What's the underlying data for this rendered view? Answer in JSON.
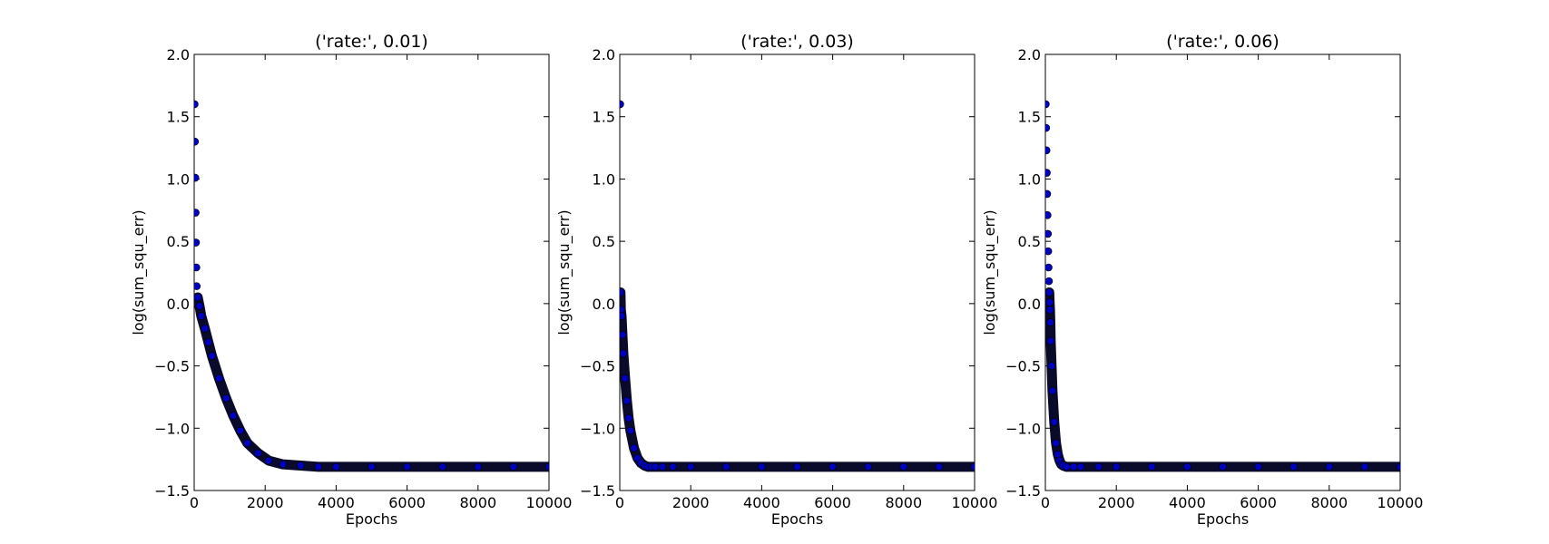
{
  "chart_data": [
    {
      "type": "scatter",
      "title": "('rate:', 0.01)",
      "xlabel": "Epochs",
      "ylabel": "log(sum_squ_err)",
      "xlim": [
        0,
        10000
      ],
      "ylim": [
        -1.5,
        2.0
      ],
      "xticks": [
        "0",
        "2000",
        "4000",
        "6000",
        "8000",
        "10000"
      ],
      "yticks": [
        "−1.5",
        "−1.0",
        "−0.5",
        "0.0",
        "0.5",
        "1.0",
        "1.5",
        "2.0"
      ],
      "grid": false,
      "marker_color": "#0000bf",
      "edge_color": "#000000",
      "series": [
        {
          "x": [
            10,
            20,
            30,
            40,
            50,
            60,
            70,
            100,
            150,
            200,
            300,
            400,
            500,
            700,
            900,
            1100,
            1300,
            1500,
            1800,
            2100,
            2500,
            3000,
            3500,
            4000,
            5000,
            6000,
            7000,
            8000,
            9000,
            10000
          ],
          "y": [
            1.6,
            1.3,
            1.01,
            0.73,
            0.49,
            0.29,
            0.14,
            0.05,
            -0.02,
            -0.1,
            -0.2,
            -0.31,
            -0.42,
            -0.6,
            -0.76,
            -0.9,
            -1.02,
            -1.12,
            -1.2,
            -1.26,
            -1.29,
            -1.3,
            -1.31,
            -1.31,
            -1.31,
            -1.31,
            -1.31,
            -1.31,
            -1.31,
            -1.31
          ]
        }
      ]
    },
    {
      "type": "scatter",
      "title": "('rate:', 0.03)",
      "xlabel": "Epochs",
      "ylabel": "log(sum_squ_err)",
      "xlim": [
        0,
        10000
      ],
      "ylim": [
        -1.5,
        2.0
      ],
      "xticks": [
        "0",
        "2000",
        "4000",
        "6000",
        "8000",
        "10000"
      ],
      "yticks": [
        "−1.5",
        "−1.0",
        "−0.5",
        "0.0",
        "0.5",
        "1.0",
        "1.5",
        "2.0"
      ],
      "grid": false,
      "marker_color": "#0000bf",
      "edge_color": "#000000",
      "series": [
        {
          "x": [
            10,
            20,
            30,
            50,
            75,
            100,
            150,
            200,
            250,
            300,
            400,
            500,
            600,
            700,
            800,
            900,
            1000,
            1200,
            1500,
            2000,
            3000,
            4000,
            5000,
            6000,
            7000,
            8000,
            9000,
            10000
          ],
          "y": [
            1.6,
            0.09,
            -0.05,
            -0.1,
            -0.25,
            -0.4,
            -0.6,
            -0.78,
            -0.92,
            -1.02,
            -1.16,
            -1.24,
            -1.28,
            -1.3,
            -1.31,
            -1.31,
            -1.31,
            -1.31,
            -1.31,
            -1.31,
            -1.31,
            -1.31,
            -1.31,
            -1.31,
            -1.31,
            -1.31,
            -1.31,
            -1.31
          ]
        }
      ]
    },
    {
      "type": "scatter",
      "title": "('rate:', 0.06)",
      "xlabel": "Epochs",
      "ylabel": "log(sum_squ_err)",
      "xlim": [
        0,
        10000
      ],
      "ylim": [
        -1.5,
        2.0
      ],
      "xticks": [
        "0",
        "2000",
        "4000",
        "6000",
        "8000",
        "10000"
      ],
      "yticks": [
        "−1.5",
        "−1.0",
        "−0.5",
        "0.0",
        "0.5",
        "1.0",
        "1.5",
        "2.0"
      ],
      "grid": false,
      "marker_color": "#0000bf",
      "edge_color": "#000000",
      "series": [
        {
          "x": [
            10,
            20,
            30,
            40,
            50,
            60,
            70,
            80,
            90,
            100,
            110,
            120,
            130,
            140,
            150,
            175,
            200,
            250,
            300,
            350,
            400,
            450,
            500,
            600,
            800,
            1000,
            1500,
            2000,
            3000,
            4000,
            5000,
            6000,
            7000,
            8000,
            9000,
            10000
          ],
          "y": [
            1.6,
            1.41,
            1.23,
            1.05,
            0.88,
            0.71,
            0.56,
            0.42,
            0.29,
            0.18,
            0.09,
            0.01,
            -0.05,
            -0.15,
            -0.3,
            -0.5,
            -0.7,
            -0.95,
            -1.12,
            -1.21,
            -1.26,
            -1.29,
            -1.3,
            -1.31,
            -1.31,
            -1.31,
            -1.31,
            -1.31,
            -1.31,
            -1.31,
            -1.31,
            -1.31,
            -1.31,
            -1.31,
            -1.31,
            -1.31
          ]
        }
      ]
    }
  ]
}
